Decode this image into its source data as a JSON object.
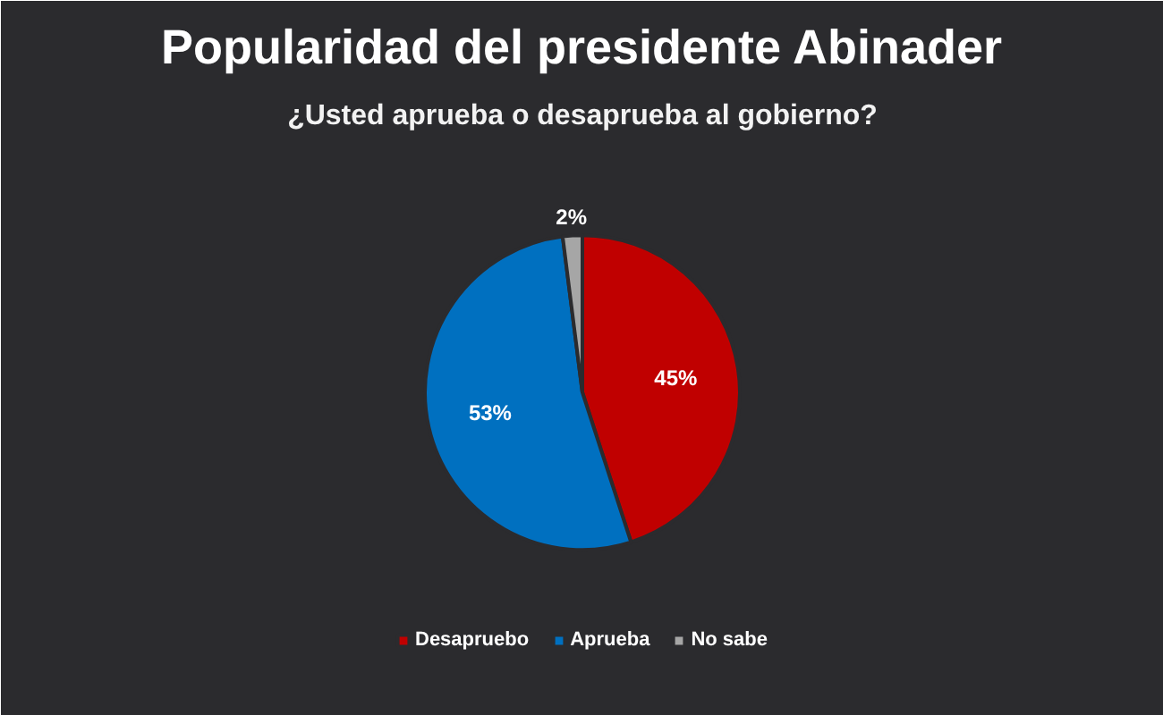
{
  "chart_data": {
    "type": "pie",
    "title": "Popularidad del presidente Abinader",
    "subtitle": "¿Usted aprueba o desaprueba al gobierno?",
    "categories": [
      "Desapruebo",
      "Aprueba",
      "No sabe"
    ],
    "values": [
      45,
      53,
      2
    ],
    "colors": [
      "#c00000",
      "#0070c0",
      "#a6a6a6"
    ],
    "value_labels": [
      "45%",
      "53%",
      "2%"
    ],
    "legend": "bottom"
  }
}
